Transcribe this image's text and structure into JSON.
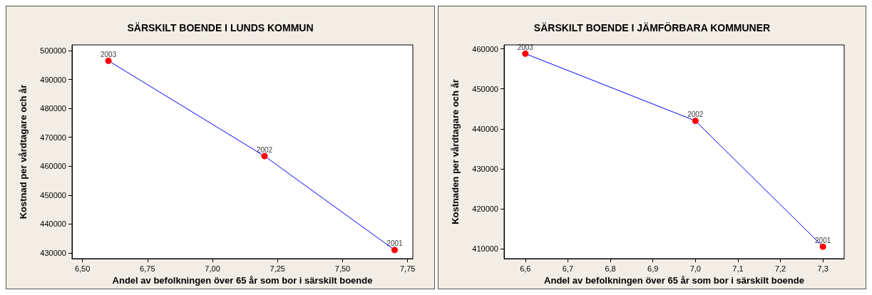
{
  "chart_data": [
    {
      "type": "line",
      "title": "SÄRSKILT BOENDE I LUNDS KOMMUN",
      "xlabel": "Andel av befolkningen över 65 år som bor i särskilt boende",
      "ylabel": "Kostnad per vårdtagare och år",
      "x": [
        6.6,
        7.2,
        7.7
      ],
      "series": [
        {
          "color": "#0000ff",
          "colors": [
            "#ff0000",
            "#ff0000",
            "#ff0000"
          ],
          "values": [
            496500,
            463500,
            431000
          ]
        }
      ],
      "marker": "circle",
      "line_style": "solid",
      "grid": false,
      "xlim": [
        6.46,
        7.77
      ],
      "ylim": [
        428000,
        502000
      ],
      "xticks": [
        {
          "value": 6.5,
          "label": "6,50"
        },
        {
          "value": 6.75,
          "label": "6,75"
        },
        {
          "value": 7.0,
          "label": "7,00"
        },
        {
          "value": 7.25,
          "label": "7,25"
        },
        {
          "value": 7.5,
          "label": "7,50"
        },
        {
          "value": 7.75,
          "label": "7,75"
        }
      ],
      "yticks": [
        430000,
        440000,
        450000,
        460000,
        470000,
        480000,
        490000,
        500000
      ],
      "annotations": [
        {
          "text": "2003",
          "x": 6.6,
          "y": 496500
        },
        {
          "text": "2002",
          "x": 7.2,
          "y": 463500
        },
        {
          "text": "2001",
          "x": 7.7,
          "y": 431000
        }
      ]
    },
    {
      "type": "line",
      "title": "SÄRSKILT BOENDE I JÄMFÖRBARA KOMMUNER",
      "xlabel": "Andel av befolkningen över 65 år som bor i särskilt boende",
      "ylabel": "Kostnaden per vårdtagare och år",
      "x": [
        6.6,
        7.0,
        7.3
      ],
      "series": [
        {
          "color": "#0000ff",
          "colors": [
            "#ff0000",
            "#ff0000",
            "#ff0000"
          ],
          "values": [
            458800,
            442000,
            410500
          ]
        }
      ],
      "marker": "circle",
      "line_style": "solid",
      "grid": false,
      "xlim": [
        6.55,
        7.35
      ],
      "ylim": [
        407500,
        461000
      ],
      "xticks": [
        {
          "value": 6.6,
          "label": "6,6"
        },
        {
          "value": 6.7,
          "label": "6,7"
        },
        {
          "value": 6.8,
          "label": "6,8"
        },
        {
          "value": 6.9,
          "label": "6,9"
        },
        {
          "value": 7.0,
          "label": "7,0"
        },
        {
          "value": 7.1,
          "label": "7,1"
        },
        {
          "value": 7.2,
          "label": "7,2"
        },
        {
          "value": 7.3,
          "label": "7,3"
        }
      ],
      "yticks": [
        410000,
        420000,
        430000,
        440000,
        450000,
        460000
      ],
      "annotations": [
        {
          "text": "2003",
          "x": 6.6,
          "y": 458800
        },
        {
          "text": "2002",
          "x": 7.0,
          "y": 442000
        },
        {
          "text": "2001",
          "x": 7.3,
          "y": 410500
        }
      ]
    }
  ]
}
